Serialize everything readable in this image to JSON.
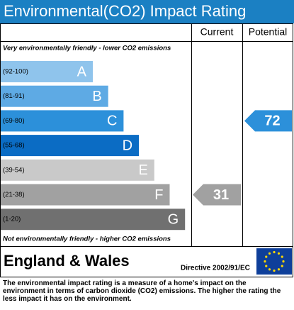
{
  "header": {
    "title": "Environmental(CO2) Impact Rating"
  },
  "columns": {
    "current": "Current",
    "potential": "Potential"
  },
  "top_note": "Very environmentally friendly - lower CO2 emissions",
  "bottom_note": "Not environmentally friendly - higher CO2 emissions",
  "bands": [
    {
      "range": "(92-100)",
      "letter": "A",
      "color": "#8fc4ec"
    },
    {
      "range": "(81-91)",
      "letter": "B",
      "color": "#5eaae4"
    },
    {
      "range": "(69-80)",
      "letter": "C",
      "color": "#2c90da"
    },
    {
      "range": "(55-68)",
      "letter": "D",
      "color": "#0b6cc4"
    },
    {
      "range": "(39-54)",
      "letter": "E",
      "color": "#c9c9c9"
    },
    {
      "range": "(21-38)",
      "letter": "F",
      "color": "#a1a1a1"
    },
    {
      "range": "(1-20)",
      "letter": "G",
      "color": "#707070"
    }
  ],
  "current": {
    "value": 31,
    "color": "#a1a1a1"
  },
  "potential": {
    "value": 72,
    "color": "#2c90da"
  },
  "region": "England & Wales",
  "directive": "Directive 2002/91/EC",
  "footer": "The environmental impact rating is a measure of a home's impact on the environment in terms of carbon dioxide (CO2) emissions. The higher the rating the less impact it has on the environment."
}
